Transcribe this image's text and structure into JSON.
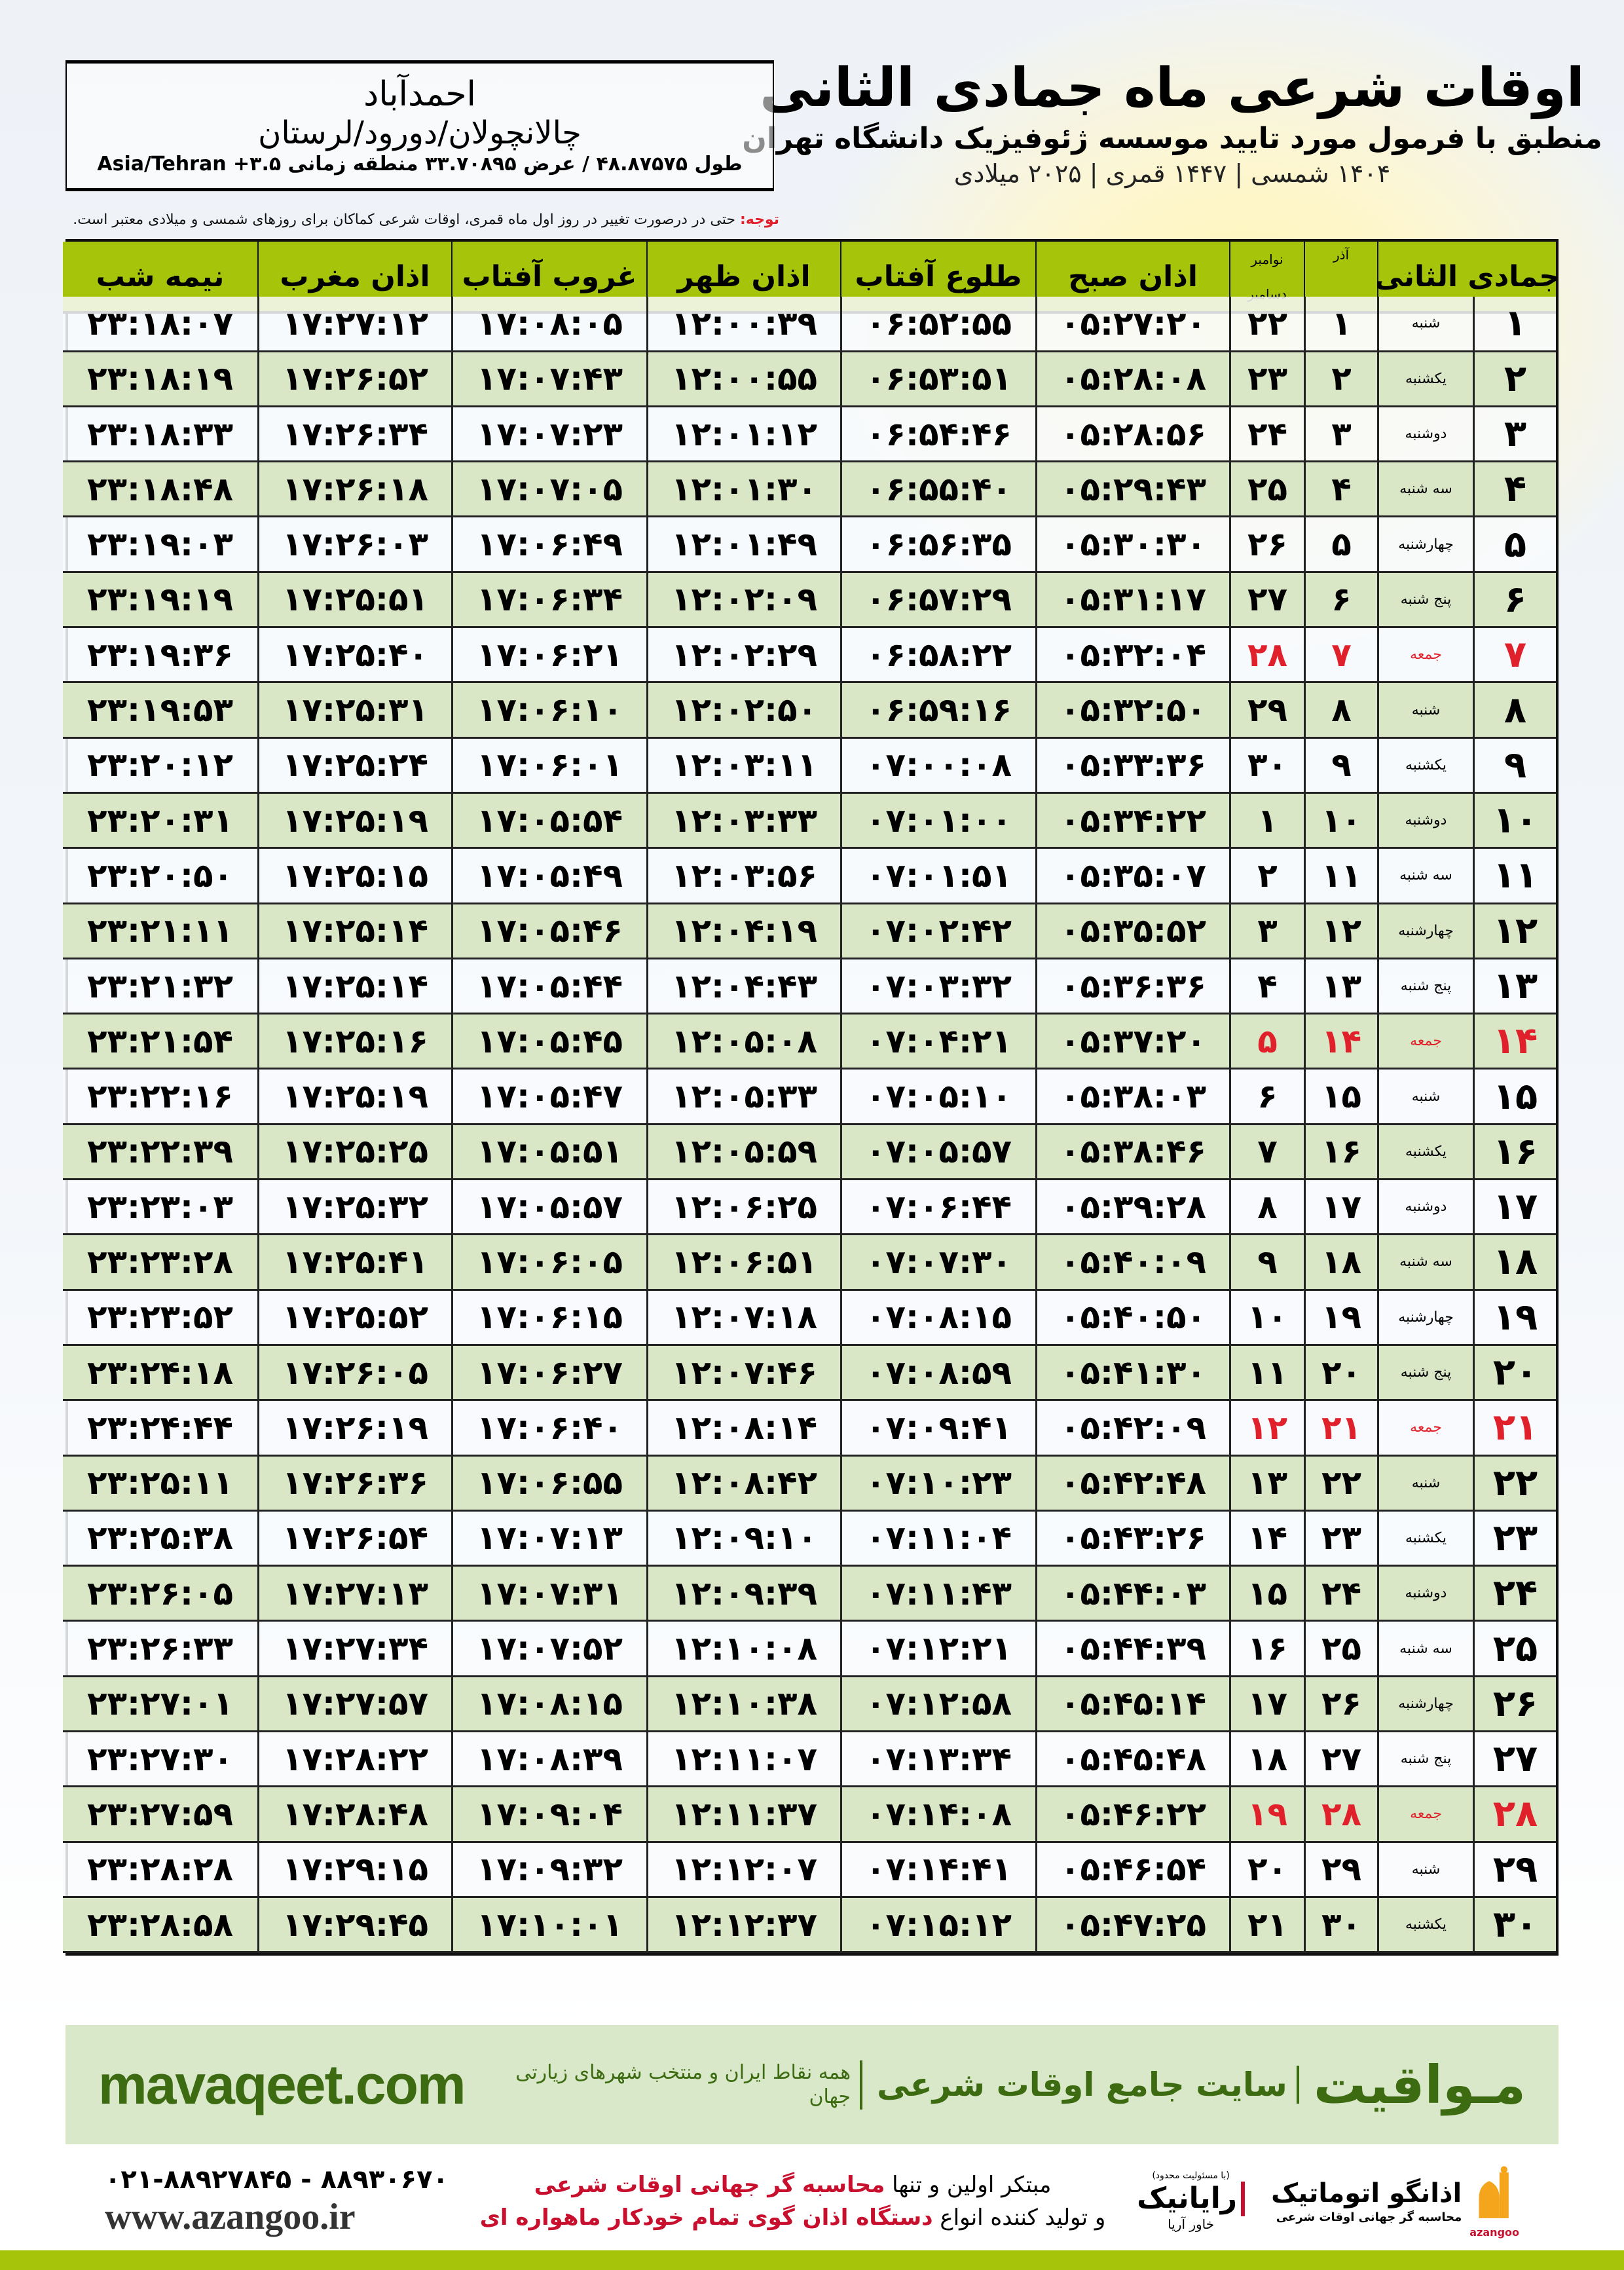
{
  "header": {
    "title": "اوقات شرعی ماه جمادی الثانی",
    "subtitle": "منطبق با فرمول مورد تایید موسسه ژئوفیزیک دانشگاه تهران",
    "years": "۱۴۰۴ شمسی | ۱۴۴۷ قمری | ۲۰۲۵ میلادی"
  },
  "location": {
    "city": "احمدآباد",
    "region": "چالانچولان/دورود/لرستان",
    "coords": "طول ۴۸.۸۷۵۷۵ / عرض ۳۳.۷۰۸۹۵ منطقه زمانی ۳.۵+ Asia/Tehran"
  },
  "note": {
    "label": "توجه:",
    "text": " حتی در درصورت تغییر در روز اول ماه قمری، اوقات شرعی کماکان برای روزهای شمسی و میلادی معتبر است."
  },
  "colors": {
    "header_green": "#a6c40a",
    "row_green": "#d9e7c6",
    "holiday_red": "#e0202a",
    "brand_green": "#3d6b12"
  },
  "table": {
    "headers": {
      "month": "جمادی الثانی",
      "azar": "آذر",
      "nov": "نوامبر",
      "dec": "دسامبر",
      "fajr": "اذان صبح",
      "sunrise": "طلوع آفتاب",
      "dhuhr": "اذان ظهر",
      "sunset": "غروب آفتاب",
      "maghrib": "اذان مغرب",
      "midnight": "نیمه شب"
    },
    "rows": [
      {
        "day": "۱",
        "weekday": "شنبه",
        "azar": "۱",
        "greg": "۲۲",
        "fajr": "۰۵:۲۷:۲۰",
        "sunrise": "۰۶:۵۲:۵۵",
        "dhuhr": "۱۲:۰۰:۳۹",
        "sunset": "۱۷:۰۸:۰۵",
        "maghrib": "۱۷:۲۷:۱۲",
        "midnight": "۲۳:۱۸:۰۷",
        "holiday": false
      },
      {
        "day": "۲",
        "weekday": "یکشنبه",
        "azar": "۲",
        "greg": "۲۳",
        "fajr": "۰۵:۲۸:۰۸",
        "sunrise": "۰۶:۵۳:۵۱",
        "dhuhr": "۱۲:۰۰:۵۵",
        "sunset": "۱۷:۰۷:۴۳",
        "maghrib": "۱۷:۲۶:۵۲",
        "midnight": "۲۳:۱۸:۱۹",
        "holiday": false
      },
      {
        "day": "۳",
        "weekday": "دوشنبه",
        "azar": "۳",
        "greg": "۲۴",
        "fajr": "۰۵:۲۸:۵۶",
        "sunrise": "۰۶:۵۴:۴۶",
        "dhuhr": "۱۲:۰۱:۱۲",
        "sunset": "۱۷:۰۷:۲۳",
        "maghrib": "۱۷:۲۶:۳۴",
        "midnight": "۲۳:۱۸:۳۳",
        "holiday": false
      },
      {
        "day": "۴",
        "weekday": "سه شنبه",
        "azar": "۴",
        "greg": "۲۵",
        "fajr": "۰۵:۲۹:۴۳",
        "sunrise": "۰۶:۵۵:۴۰",
        "dhuhr": "۱۲:۰۱:۳۰",
        "sunset": "۱۷:۰۷:۰۵",
        "maghrib": "۱۷:۲۶:۱۸",
        "midnight": "۲۳:۱۸:۴۸",
        "holiday": false
      },
      {
        "day": "۵",
        "weekday": "چهارشنبه",
        "azar": "۵",
        "greg": "۲۶",
        "fajr": "۰۵:۳۰:۳۰",
        "sunrise": "۰۶:۵۶:۳۵",
        "dhuhr": "۱۲:۰۱:۴۹",
        "sunset": "۱۷:۰۶:۴۹",
        "maghrib": "۱۷:۲۶:۰۳",
        "midnight": "۲۳:۱۹:۰۳",
        "holiday": false
      },
      {
        "day": "۶",
        "weekday": "پنج شنبه",
        "azar": "۶",
        "greg": "۲۷",
        "fajr": "۰۵:۳۱:۱۷",
        "sunrise": "۰۶:۵۷:۲۹",
        "dhuhr": "۱۲:۰۲:۰۹",
        "sunset": "۱۷:۰۶:۳۴",
        "maghrib": "۱۷:۲۵:۵۱",
        "midnight": "۲۳:۱۹:۱۹",
        "holiday": false
      },
      {
        "day": "۷",
        "weekday": "جمعه",
        "azar": "۷",
        "greg": "۲۸",
        "fajr": "۰۵:۳۲:۰۴",
        "sunrise": "۰۶:۵۸:۲۲",
        "dhuhr": "۱۲:۰۲:۲۹",
        "sunset": "۱۷:۰۶:۲۱",
        "maghrib": "۱۷:۲۵:۴۰",
        "midnight": "۲۳:۱۹:۳۶",
        "holiday": true
      },
      {
        "day": "۸",
        "weekday": "شنبه",
        "azar": "۸",
        "greg": "۲۹",
        "fajr": "۰۵:۳۲:۵۰",
        "sunrise": "۰۶:۵۹:۱۶",
        "dhuhr": "۱۲:۰۲:۵۰",
        "sunset": "۱۷:۰۶:۱۰",
        "maghrib": "۱۷:۲۵:۳۱",
        "midnight": "۲۳:۱۹:۵۳",
        "holiday": false
      },
      {
        "day": "۹",
        "weekday": "یکشنبه",
        "azar": "۹",
        "greg": "۳۰",
        "fajr": "۰۵:۳۳:۳۶",
        "sunrise": "۰۷:۰۰:۰۸",
        "dhuhr": "۱۲:۰۳:۱۱",
        "sunset": "۱۷:۰۶:۰۱",
        "maghrib": "۱۷:۲۵:۲۴",
        "midnight": "۲۳:۲۰:۱۲",
        "holiday": false
      },
      {
        "day": "۱۰",
        "weekday": "دوشنبه",
        "azar": "۱۰",
        "greg": "۱",
        "fajr": "۰۵:۳۴:۲۲",
        "sunrise": "۰۷:۰۱:۰۰",
        "dhuhr": "۱۲:۰۳:۳۳",
        "sunset": "۱۷:۰۵:۵۴",
        "maghrib": "۱۷:۲۵:۱۹",
        "midnight": "۲۳:۲۰:۳۱",
        "holiday": false
      },
      {
        "day": "۱۱",
        "weekday": "سه شنبه",
        "azar": "۱۱",
        "greg": "۲",
        "fajr": "۰۵:۳۵:۰۷",
        "sunrise": "۰۷:۰۱:۵۱",
        "dhuhr": "۱۲:۰۳:۵۶",
        "sunset": "۱۷:۰۵:۴۹",
        "maghrib": "۱۷:۲۵:۱۵",
        "midnight": "۲۳:۲۰:۵۰",
        "holiday": false
      },
      {
        "day": "۱۲",
        "weekday": "چهارشنبه",
        "azar": "۱۲",
        "greg": "۳",
        "fajr": "۰۵:۳۵:۵۲",
        "sunrise": "۰۷:۰۲:۴۲",
        "dhuhr": "۱۲:۰۴:۱۹",
        "sunset": "۱۷:۰۵:۴۶",
        "maghrib": "۱۷:۲۵:۱۴",
        "midnight": "۲۳:۲۱:۱۱",
        "holiday": false
      },
      {
        "day": "۱۳",
        "weekday": "پنج شنبه",
        "azar": "۱۳",
        "greg": "۴",
        "fajr": "۰۵:۳۶:۳۶",
        "sunrise": "۰۷:۰۳:۳۲",
        "dhuhr": "۱۲:۰۴:۴۳",
        "sunset": "۱۷:۰۵:۴۴",
        "maghrib": "۱۷:۲۵:۱۴",
        "midnight": "۲۳:۲۱:۳۲",
        "holiday": false
      },
      {
        "day": "۱۴",
        "weekday": "جمعه",
        "azar": "۱۴",
        "greg": "۵",
        "fajr": "۰۵:۳۷:۲۰",
        "sunrise": "۰۷:۰۴:۲۱",
        "dhuhr": "۱۲:۰۵:۰۸",
        "sunset": "۱۷:۰۵:۴۵",
        "maghrib": "۱۷:۲۵:۱۶",
        "midnight": "۲۳:۲۱:۵۴",
        "holiday": true
      },
      {
        "day": "۱۵",
        "weekday": "شنبه",
        "azar": "۱۵",
        "greg": "۶",
        "fajr": "۰۵:۳۸:۰۳",
        "sunrise": "۰۷:۰۵:۱۰",
        "dhuhr": "۱۲:۰۵:۳۳",
        "sunset": "۱۷:۰۵:۴۷",
        "maghrib": "۱۷:۲۵:۱۹",
        "midnight": "۲۳:۲۲:۱۶",
        "holiday": false
      },
      {
        "day": "۱۶",
        "weekday": "یکشنبه",
        "azar": "۱۶",
        "greg": "۷",
        "fajr": "۰۵:۳۸:۴۶",
        "sunrise": "۰۷:۰۵:۵۷",
        "dhuhr": "۱۲:۰۵:۵۹",
        "sunset": "۱۷:۰۵:۵۱",
        "maghrib": "۱۷:۲۵:۲۵",
        "midnight": "۲۳:۲۲:۳۹",
        "holiday": false
      },
      {
        "day": "۱۷",
        "weekday": "دوشنبه",
        "azar": "۱۷",
        "greg": "۸",
        "fajr": "۰۵:۳۹:۲۸",
        "sunrise": "۰۷:۰۶:۴۴",
        "dhuhr": "۱۲:۰۶:۲۵",
        "sunset": "۱۷:۰۵:۵۷",
        "maghrib": "۱۷:۲۵:۳۲",
        "midnight": "۲۳:۲۳:۰۳",
        "holiday": false
      },
      {
        "day": "۱۸",
        "weekday": "سه شنبه",
        "azar": "۱۸",
        "greg": "۹",
        "fajr": "۰۵:۴۰:۰۹",
        "sunrise": "۰۷:۰۷:۳۰",
        "dhuhr": "۱۲:۰۶:۵۱",
        "sunset": "۱۷:۰۶:۰۵",
        "maghrib": "۱۷:۲۵:۴۱",
        "midnight": "۲۳:۲۳:۲۸",
        "holiday": false
      },
      {
        "day": "۱۹",
        "weekday": "چهارشنبه",
        "azar": "۱۹",
        "greg": "۱۰",
        "fajr": "۰۵:۴۰:۵۰",
        "sunrise": "۰۷:۰۸:۱۵",
        "dhuhr": "۱۲:۰۷:۱۸",
        "sunset": "۱۷:۰۶:۱۵",
        "maghrib": "۱۷:۲۵:۵۲",
        "midnight": "۲۳:۲۳:۵۲",
        "holiday": false
      },
      {
        "day": "۲۰",
        "weekday": "پنج شنبه",
        "azar": "۲۰",
        "greg": "۱۱",
        "fajr": "۰۵:۴۱:۳۰",
        "sunrise": "۰۷:۰۸:۵۹",
        "dhuhr": "۱۲:۰۷:۴۶",
        "sunset": "۱۷:۰۶:۲۷",
        "maghrib": "۱۷:۲۶:۰۵",
        "midnight": "۲۳:۲۴:۱۸",
        "holiday": false
      },
      {
        "day": "۲۱",
        "weekday": "جمعه",
        "azar": "۲۱",
        "greg": "۱۲",
        "fajr": "۰۵:۴۲:۰۹",
        "sunrise": "۰۷:۰۹:۴۱",
        "dhuhr": "۱۲:۰۸:۱۴",
        "sunset": "۱۷:۰۶:۴۰",
        "maghrib": "۱۷:۲۶:۱۹",
        "midnight": "۲۳:۲۴:۴۴",
        "holiday": true
      },
      {
        "day": "۲۲",
        "weekday": "شنبه",
        "azar": "۲۲",
        "greg": "۱۳",
        "fajr": "۰۵:۴۲:۴۸",
        "sunrise": "۰۷:۱۰:۲۳",
        "dhuhr": "۱۲:۰۸:۴۲",
        "sunset": "۱۷:۰۶:۵۵",
        "maghrib": "۱۷:۲۶:۳۶",
        "midnight": "۲۳:۲۵:۱۱",
        "holiday": false
      },
      {
        "day": "۲۳",
        "weekday": "یکشنبه",
        "azar": "۲۳",
        "greg": "۱۴",
        "fajr": "۰۵:۴۳:۲۶",
        "sunrise": "۰۷:۱۱:۰۴",
        "dhuhr": "۱۲:۰۹:۱۰",
        "sunset": "۱۷:۰۷:۱۳",
        "maghrib": "۱۷:۲۶:۵۴",
        "midnight": "۲۳:۲۵:۳۸",
        "holiday": false
      },
      {
        "day": "۲۴",
        "weekday": "دوشنبه",
        "azar": "۲۴",
        "greg": "۱۵",
        "fajr": "۰۵:۴۴:۰۳",
        "sunrise": "۰۷:۱۱:۴۳",
        "dhuhr": "۱۲:۰۹:۳۹",
        "sunset": "۱۷:۰۷:۳۱",
        "maghrib": "۱۷:۲۷:۱۳",
        "midnight": "۲۳:۲۶:۰۵",
        "holiday": false
      },
      {
        "day": "۲۵",
        "weekday": "سه شنبه",
        "azar": "۲۵",
        "greg": "۱۶",
        "fajr": "۰۵:۴۴:۳۹",
        "sunrise": "۰۷:۱۲:۲۱",
        "dhuhr": "۱۲:۱۰:۰۸",
        "sunset": "۱۷:۰۷:۵۲",
        "maghrib": "۱۷:۲۷:۳۴",
        "midnight": "۲۳:۲۶:۳۳",
        "holiday": false
      },
      {
        "day": "۲۶",
        "weekday": "چهارشنبه",
        "azar": "۲۶",
        "greg": "۱۷",
        "fajr": "۰۵:۴۵:۱۴",
        "sunrise": "۰۷:۱۲:۵۸",
        "dhuhr": "۱۲:۱۰:۳۸",
        "sunset": "۱۷:۰۸:۱۵",
        "maghrib": "۱۷:۲۷:۵۷",
        "midnight": "۲۳:۲۷:۰۱",
        "holiday": false
      },
      {
        "day": "۲۷",
        "weekday": "پنج شنبه",
        "azar": "۲۷",
        "greg": "۱۸",
        "fajr": "۰۵:۴۵:۴۸",
        "sunrise": "۰۷:۱۳:۳۴",
        "dhuhr": "۱۲:۱۱:۰۷",
        "sunset": "۱۷:۰۸:۳۹",
        "maghrib": "۱۷:۲۸:۲۲",
        "midnight": "۲۳:۲۷:۳۰",
        "holiday": false
      },
      {
        "day": "۲۸",
        "weekday": "جمعه",
        "azar": "۲۸",
        "greg": "۱۹",
        "fajr": "۰۵:۴۶:۲۲",
        "sunrise": "۰۷:۱۴:۰۸",
        "dhuhr": "۱۲:۱۱:۳۷",
        "sunset": "۱۷:۰۹:۰۴",
        "maghrib": "۱۷:۲۸:۴۸",
        "midnight": "۲۳:۲۷:۵۹",
        "holiday": true
      },
      {
        "day": "۲۹",
        "weekday": "شنبه",
        "azar": "۲۹",
        "greg": "۲۰",
        "fajr": "۰۵:۴۶:۵۴",
        "sunrise": "۰۷:۱۴:۴۱",
        "dhuhr": "۱۲:۱۲:۰۷",
        "sunset": "۱۷:۰۹:۳۲",
        "maghrib": "۱۷:۲۹:۱۵",
        "midnight": "۲۳:۲۸:۲۸",
        "holiday": false
      },
      {
        "day": "۳۰",
        "weekday": "یکشنبه",
        "azar": "۳۰",
        "greg": "۲۱",
        "fajr": "۰۵:۴۷:۲۵",
        "sunrise": "۰۷:۱۵:۱۲",
        "dhuhr": "۱۲:۱۲:۳۷",
        "sunset": "۱۷:۱۰:۰۱",
        "maghrib": "۱۷:۲۹:۴۵",
        "midnight": "۲۳:۲۸:۵۸",
        "holiday": false
      }
    ]
  },
  "banner": {
    "brand": "مـواقیت",
    "slogan": "سایت جامع اوقات شرعی",
    "slogan2": "همه نقاط ایران و منتخب شهرهای زیارتی جهان",
    "site": "mavaqeet.com"
  },
  "footer": {
    "phones": "۰۲۱-۸۸۹۲۷۸۴۵ - ۸۸۹۳۰۶۷۰",
    "www": "www.azangoo.ir",
    "promo_1a": "مبتکر اولین و تنها ",
    "promo_1b": "محاسبه گر جهانی اوقات شرعی",
    "promo_2a": "و تولید کننده انواع ",
    "promo_2b": "دستگاه اذان گوی تمام خودکار ماهواره ای",
    "rayanik_top": "(با مسئولیت محدود)",
    "rayanik": "رایانیک",
    "rayanik_sub": "خاور آریا",
    "azangoo": "اذانگو اتوماتیک",
    "azangoo_sub": "محاسبه گر جهانی اوقات شرعی",
    "azangoo_latin": "azangoo"
  }
}
